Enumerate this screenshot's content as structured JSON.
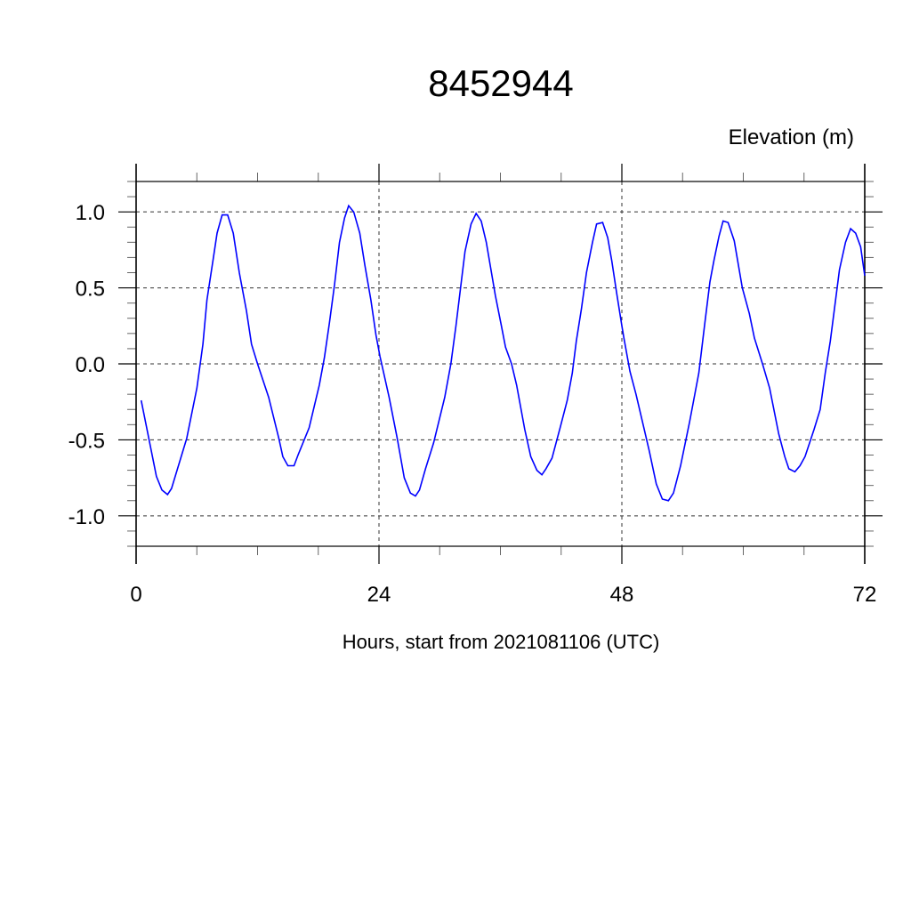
{
  "chart_data": {
    "type": "line",
    "title": "8452944",
    "ylabel": "Elevation (m)",
    "xlabel": "Hours, start from 2021081106 (UTC)",
    "xlim": [
      0,
      72
    ],
    "ylim": [
      -1.2,
      1.2
    ],
    "x_ticks": [
      0,
      24,
      48,
      72
    ],
    "x_tick_labels": [
      "0",
      "24",
      "48",
      "72"
    ],
    "x_minor_step": 6,
    "y_ticks": [
      -1.0,
      -0.5,
      0.0,
      0.5,
      1.0
    ],
    "y_tick_labels": [
      "-1.0",
      "-0.5",
      "0.0",
      "0.5",
      "1.0"
    ],
    "y_minor_step": 0.1,
    "grid": "dashed at major ticks",
    "line_color": "#0000ff",
    "series": [
      {
        "x": [
          0.5,
          2.0,
          2.55,
          3.1,
          3.5,
          5.0,
          6.0,
          6.6,
          7.0,
          7.6,
          8.0,
          8.5,
          9.05,
          9.6,
          10.2,
          10.9,
          11.4,
          12.0,
          13.1,
          14.1,
          14.5,
          15.0,
          15.6,
          16.0,
          17.1,
          17.6,
          18.1,
          18.6,
          19.1,
          19.6,
          20.1,
          20.6,
          21.0,
          21.5,
          22.1,
          22.6,
          23.2,
          23.7,
          24.1,
          25.0,
          25.8,
          26.5,
          27.1,
          27.6,
          28.0,
          28.6,
          29.4,
          30.5,
          31.1,
          31.6,
          32.1,
          32.5,
          33.1,
          33.6,
          34.1,
          34.6,
          35.5,
          36.1,
          36.5,
          37.1,
          37.6,
          38.4,
          39.0,
          39.6,
          40.1,
          40.5,
          41.1,
          41.9,
          42.6,
          43.1,
          43.5,
          44.0,
          44.5,
          45.1,
          45.5,
          46.1,
          46.6,
          47.0,
          47.5,
          48.0,
          48.2,
          48.8,
          49.4,
          50.1,
          50.7,
          51.4,
          52.0,
          52.6,
          53.1,
          53.8,
          54.7,
          55.6,
          56.2,
          56.7,
          57.1,
          57.6,
          58.0,
          58.5,
          59.1,
          59.9,
          60.6,
          61.1,
          61.9,
          62.6,
          63.5,
          64.1,
          64.5,
          65.1,
          65.6,
          66.1,
          67.0,
          67.6,
          68.1,
          68.6,
          69.0,
          69.5,
          70.1,
          70.6,
          71.1,
          71.6,
          72.0
        ],
        "y": [
          -0.24,
          -0.74,
          -0.83,
          -0.86,
          -0.82,
          -0.49,
          -0.16,
          0.13,
          0.42,
          0.68,
          0.86,
          0.98,
          0.98,
          0.86,
          0.6,
          0.35,
          0.13,
          0.0,
          -0.22,
          -0.49,
          -0.61,
          -0.67,
          -0.67,
          -0.6,
          -0.42,
          -0.28,
          -0.14,
          0.04,
          0.27,
          0.52,
          0.8,
          0.96,
          1.04,
          1.0,
          0.86,
          0.65,
          0.42,
          0.19,
          0.05,
          -0.22,
          -0.49,
          -0.75,
          -0.85,
          -0.87,
          -0.83,
          -0.69,
          -0.52,
          -0.22,
          0.0,
          0.25,
          0.52,
          0.74,
          0.92,
          0.99,
          0.94,
          0.8,
          0.45,
          0.25,
          0.11,
          0.0,
          -0.14,
          -0.43,
          -0.61,
          -0.7,
          -0.73,
          -0.69,
          -0.62,
          -0.42,
          -0.24,
          -0.06,
          0.15,
          0.36,
          0.6,
          0.8,
          0.92,
          0.93,
          0.83,
          0.68,
          0.46,
          0.25,
          0.17,
          -0.05,
          -0.2,
          -0.4,
          -0.57,
          -0.79,
          -0.89,
          -0.9,
          -0.85,
          -0.67,
          -0.38,
          -0.06,
          0.27,
          0.54,
          0.68,
          0.84,
          0.94,
          0.93,
          0.81,
          0.5,
          0.33,
          0.17,
          0.0,
          -0.16,
          -0.46,
          -0.61,
          -0.69,
          -0.71,
          -0.67,
          -0.61,
          -0.43,
          -0.3,
          -0.06,
          0.15,
          0.36,
          0.62,
          0.8,
          0.89,
          0.86,
          0.77,
          0.58
        ]
      }
    ]
  }
}
